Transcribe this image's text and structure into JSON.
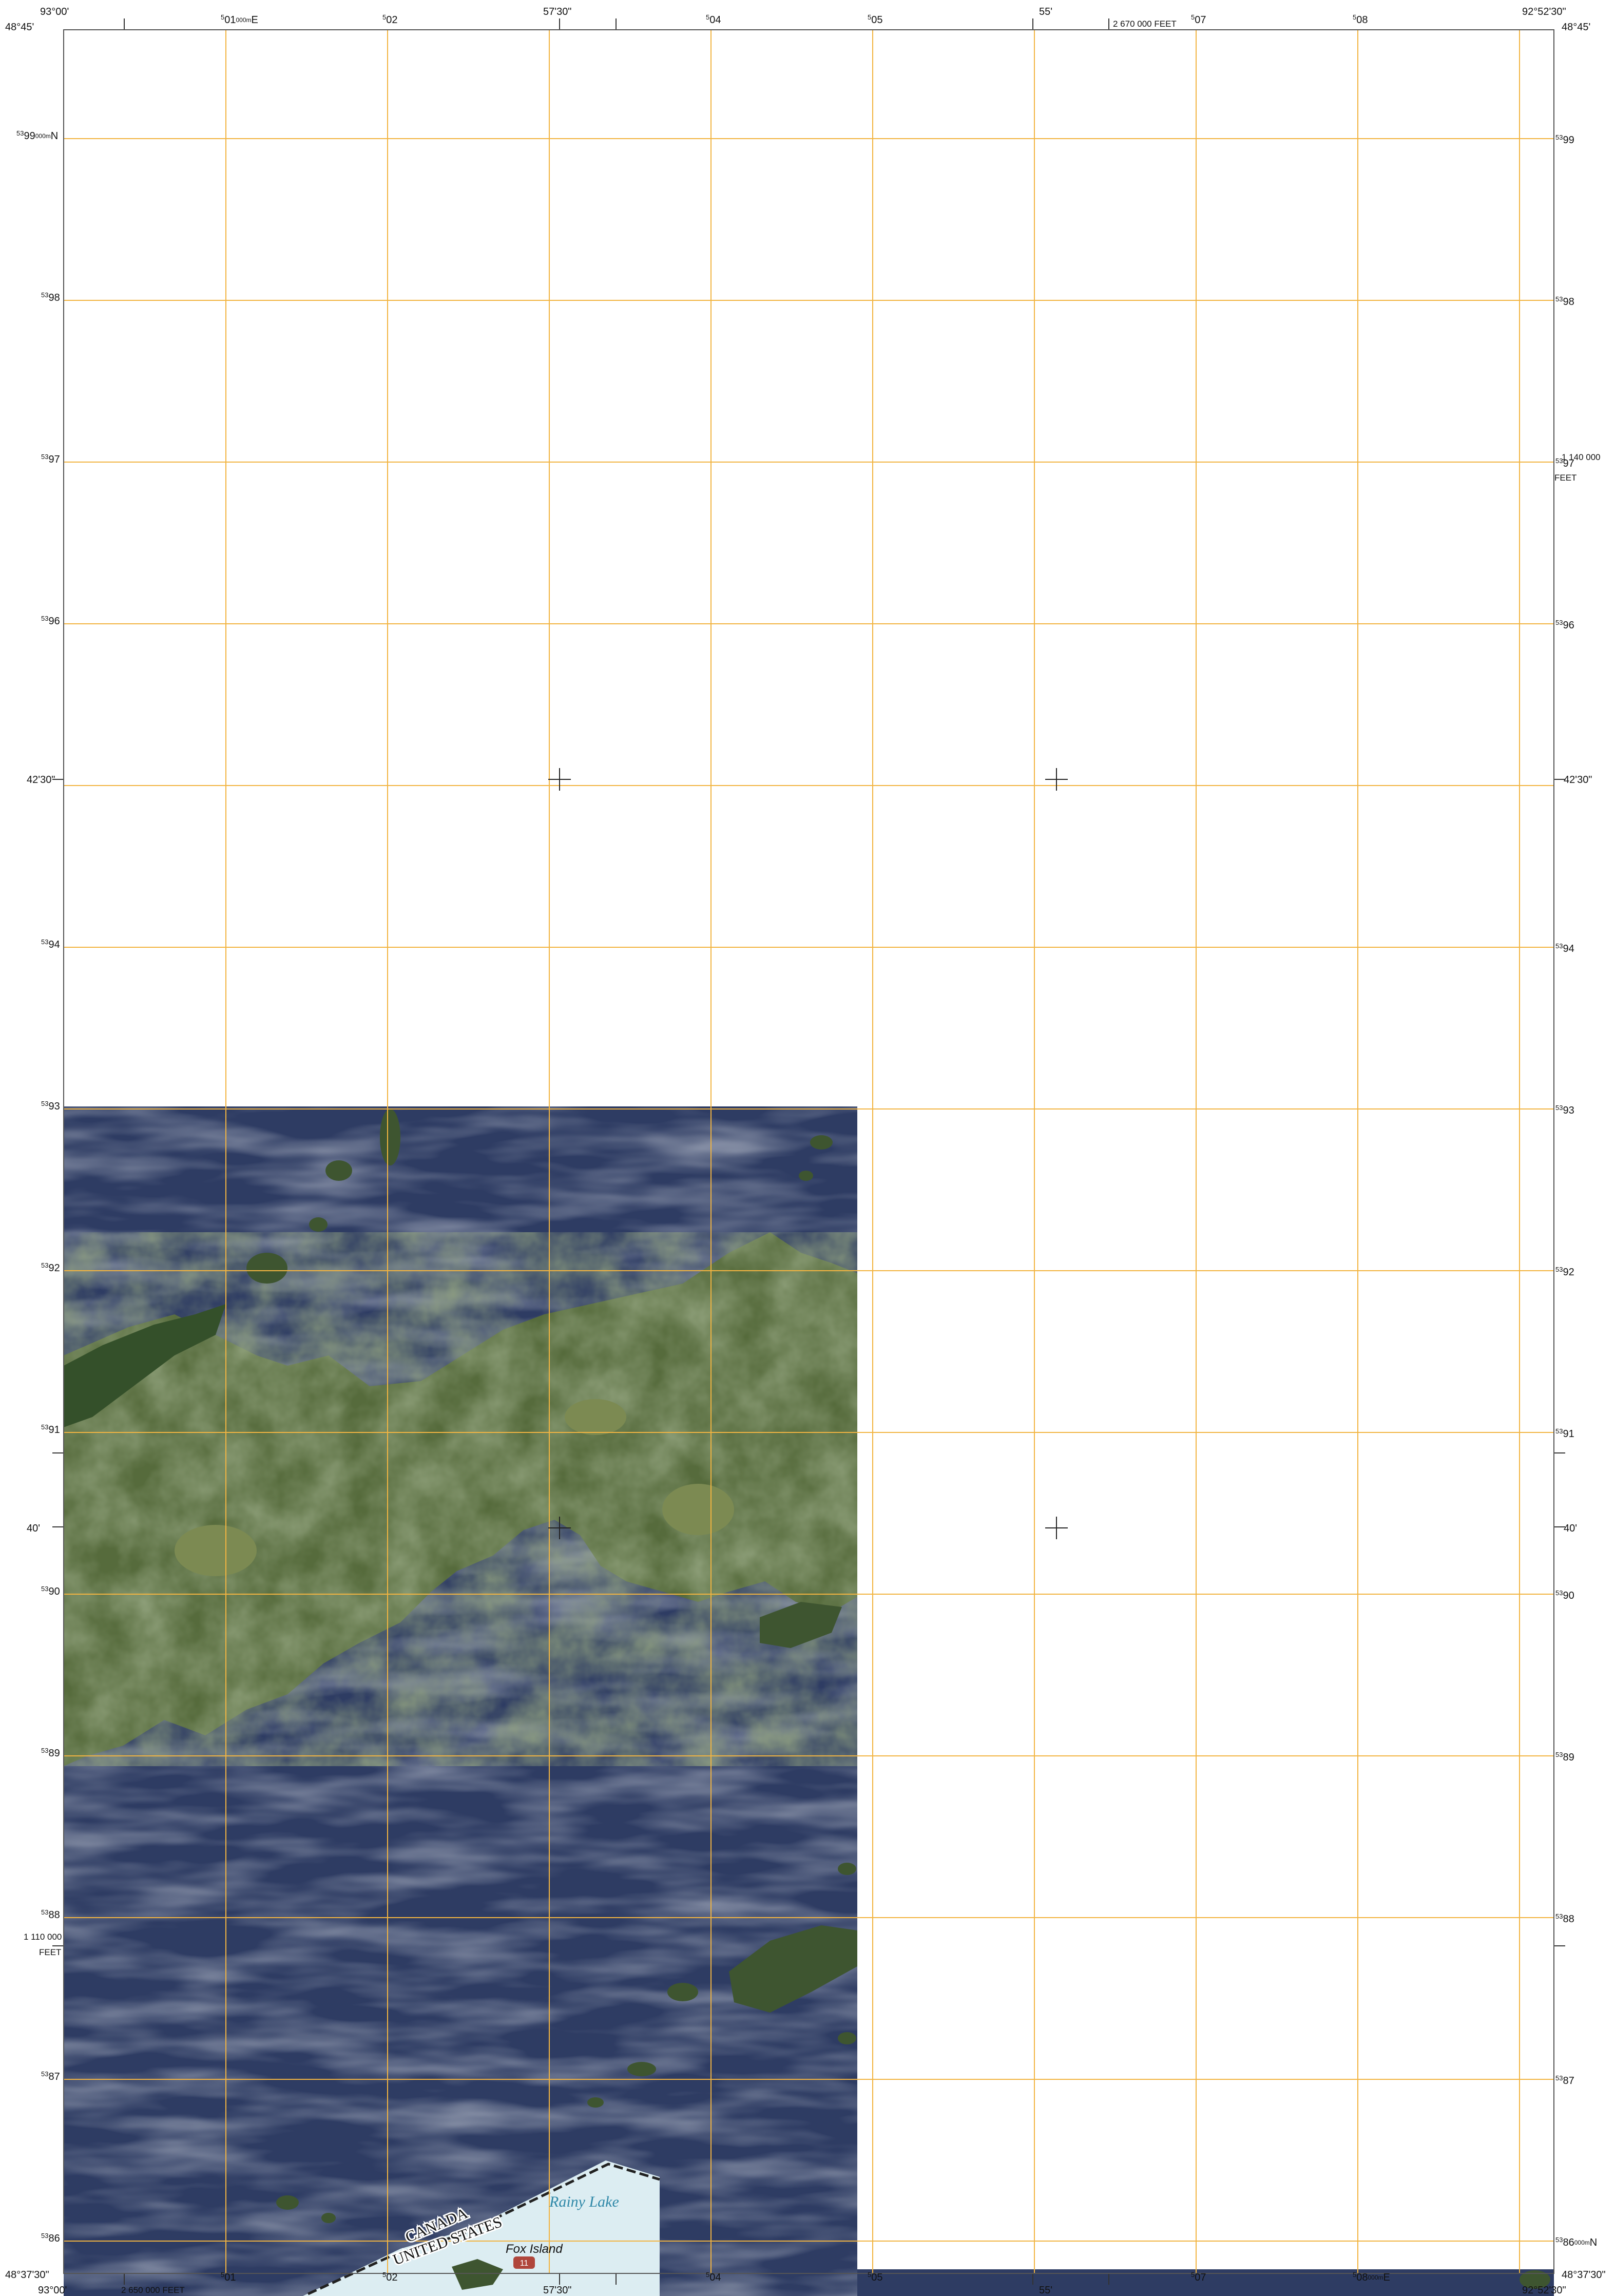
{
  "corners": {
    "top_left_lon": "93°00'",
    "top_left_lat": "48°45'",
    "top_right_lon": "92°52'30\"",
    "top_right_lat": "48°45'",
    "bottom_left_lon": "93°00'",
    "bottom_left_lat": "48°37'30\"",
    "bottom_right_lon": "92°52'30\"",
    "bottom_right_lat": "48°37'30\""
  },
  "graticule": {
    "mid_lon": "57'30\"",
    "lon_55": "55'",
    "lat_4230": "42'30\"",
    "lat_40": "40'"
  },
  "grid_prefix": {
    "easting": "5",
    "northing": "53"
  },
  "eastings": [
    "01",
    "02",
    "04",
    "05",
    "07",
    "08"
  ],
  "easting_unit": "000m",
  "easting_suffix": "E",
  "northings": [
    "99",
    "98",
    "97",
    "96",
    "94",
    "93",
    "92",
    "91",
    "90",
    "89",
    "88",
    "87",
    "86"
  ],
  "northing_unit": "000m",
  "northing_suffix": "N",
  "feet": {
    "top_label": "2 670 000 FEET",
    "bottom_label": "2 650 000 FEET",
    "right_value": "1 140 000",
    "right_unit": "FEET",
    "left_value": "1 110 000",
    "left_unit": "FEET"
  },
  "boundary": {
    "north_country": "CANADA",
    "south_country": "UNITED STATES"
  },
  "features": {
    "lake": "Rainy Lake",
    "island": "Fox Island",
    "route": "11"
  },
  "colors": {
    "grid_line": "#f2b441",
    "water": "#2e3c63",
    "land": "#566b3c",
    "forest": "#34502a",
    "map_water_fill": "#dcedf2",
    "boundary": "#222222"
  }
}
